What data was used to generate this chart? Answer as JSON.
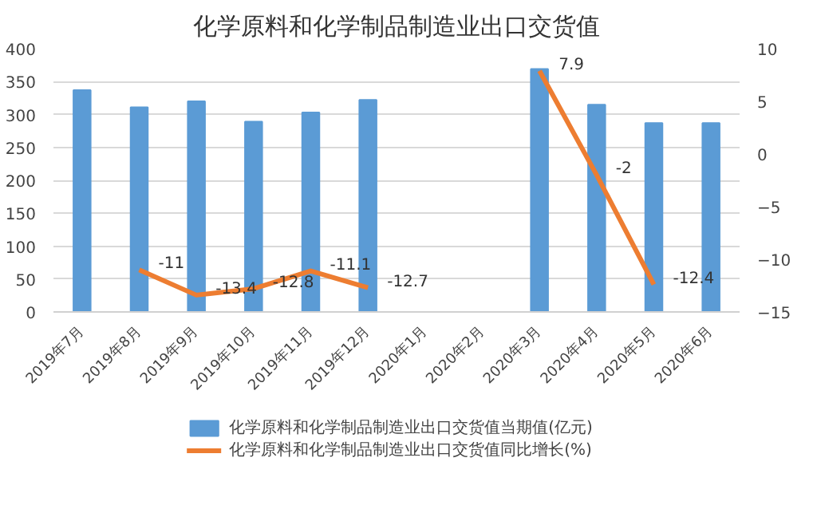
{
  "chart_data": {
    "type": "bar",
    "title": "化学原料和化学制品制造业出口交货值",
    "categories": [
      "2019年7月",
      "2019年8月",
      "2019年9月",
      "2019年10月",
      "2019年11月",
      "2019年12月",
      "2020年1月",
      "2020年2月",
      "2020年3月",
      "2020年4月",
      "2020年5月",
      "2020年6月"
    ],
    "series": [
      {
        "name": "化学原料和化学制品制造业出口交货值当期值(亿元)",
        "color": "#5b9bd5",
        "values": [
          337,
          311,
          320,
          289,
          303,
          322,
          null,
          null,
          369,
          315,
          287,
          287
        ]
      },
      {
        "name": "化学原料和化学制品制造业出口交货值同比增长(%)",
        "type": "line",
        "axis": "y2",
        "color": "#ed7d31",
        "data_labels": true,
        "values": [
          null,
          -11,
          -13.4,
          -12.8,
          -11.1,
          -12.7,
          null,
          null,
          7.9,
          -2,
          -12.4,
          null
        ]
      }
    ],
    "ylim": [
      0,
      400
    ],
    "yticks": [
      0,
      50,
      100,
      150,
      200,
      250,
      300,
      350,
      400
    ],
    "y2lim": [
      -15,
      10
    ],
    "y2ticks": [
      -15,
      -10,
      -5,
      0,
      5,
      10
    ],
    "grid": "y",
    "legend": "bottom",
    "marker": "none",
    "line_style": "solid"
  }
}
